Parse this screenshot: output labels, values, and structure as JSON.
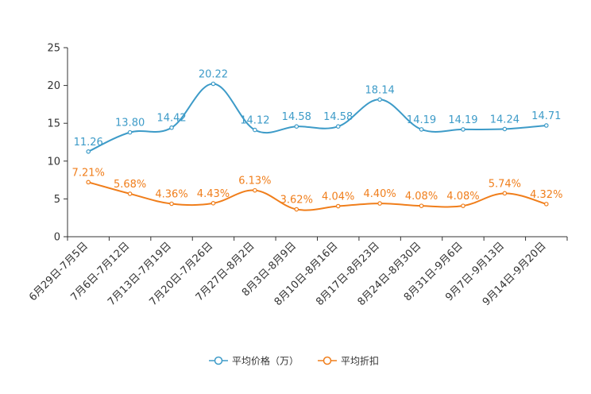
{
  "chart_data": {
    "type": "line",
    "title": "",
    "xlabel": "",
    "ylabel": "",
    "ylim": [
      0,
      25
    ],
    "yticks": [
      0,
      5,
      10,
      15,
      20,
      25
    ],
    "grid": false,
    "legend_position": "bottom",
    "categories": [
      "6月29日-7月5日",
      "7月6日-7月12日",
      "7月13日-7月19日",
      "7月20日-7月26日",
      "7月27日-8月2日",
      "8月3日-8月9日",
      "8月10日-8月16日",
      "8月17日-8月23日",
      "8月24日-8月30日",
      "8月31日-9月6日",
      "9月7日-9月13日",
      "9月14日-9月20日"
    ],
    "series": [
      {
        "name": "平均价格（万）",
        "color": "#3d9bc8",
        "values": [
          11.26,
          13.8,
          14.42,
          20.22,
          14.12,
          14.58,
          14.58,
          18.14,
          14.19,
          14.19,
          14.24,
          14.71
        ],
        "labels": [
          "11.26",
          "13.80",
          "14.42",
          "20.22",
          "14.12",
          "14.58",
          "14.58",
          "18.14",
          "14.19",
          "14.19",
          "14.24",
          "14.71"
        ]
      },
      {
        "name": "平均折扣",
        "color": "#f07e1b",
        "values": [
          7.21,
          5.68,
          4.36,
          4.43,
          6.13,
          3.62,
          4.04,
          4.4,
          4.08,
          4.08,
          5.74,
          4.32
        ],
        "labels": [
          "7.21%",
          "5.68%",
          "4.36%",
          "4.43%",
          "6.13%",
          "3.62%",
          "4.04%",
          "4.40%",
          "4.08%",
          "4.08%",
          "5.74%",
          "4.32%"
        ]
      }
    ]
  }
}
